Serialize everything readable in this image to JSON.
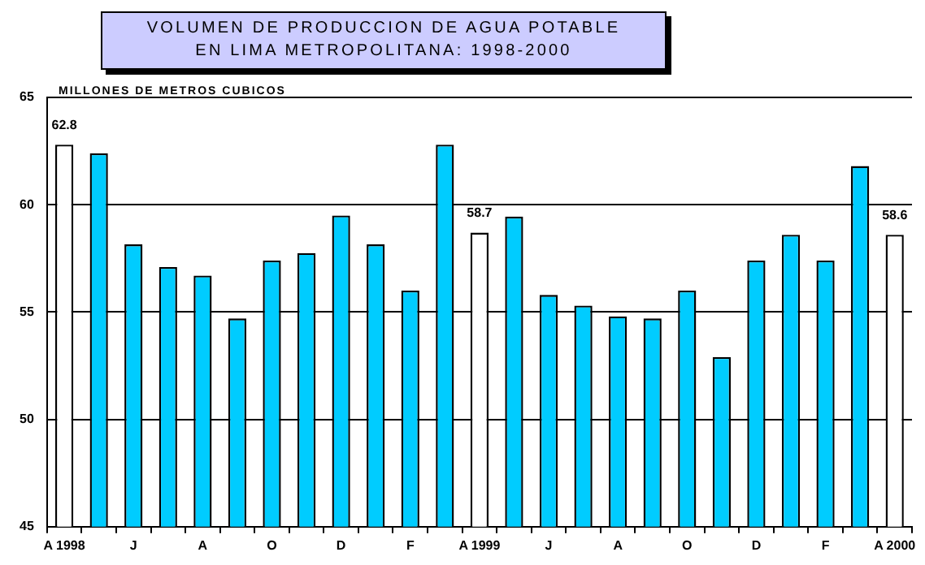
{
  "chart_data": {
    "type": "bar",
    "title": "VOLUMEN DE PRODUCCION DE AGUA POTABLE\nEN LIMA METROPOLITANA: 1998-2000",
    "ylabel": "MILLONES DE METROS CUBICOS",
    "categories": [
      "A 1998",
      null,
      "J",
      null,
      "A",
      null,
      "O",
      null,
      "D",
      null,
      "F",
      null,
      "A 1999",
      null,
      "J",
      null,
      "A",
      null,
      "O",
      null,
      "D",
      null,
      "F",
      null,
      "A 2000"
    ],
    "values": [
      62.8,
      62.4,
      58.15,
      57.1,
      56.7,
      54.7,
      57.4,
      57.75,
      59.5,
      58.15,
      56.0,
      62.8,
      58.7,
      59.45,
      55.8,
      55.3,
      54.8,
      54.7,
      56.0,
      52.9,
      57.4,
      58.6,
      57.4,
      61.8,
      58.6
    ],
    "colors": [
      "#ffffff",
      "#00ccff",
      "#00ccff",
      "#00ccff",
      "#00ccff",
      "#00ccff",
      "#00ccff",
      "#00ccff",
      "#00ccff",
      "#00ccff",
      "#00ccff",
      "#00ccff",
      "#ffffff",
      "#00ccff",
      "#00ccff",
      "#00ccff",
      "#00ccff",
      "#00ccff",
      "#00ccff",
      "#00ccff",
      "#00ccff",
      "#00ccff",
      "#00ccff",
      "#00ccff",
      "#ffffff"
    ],
    "value_labels": [
      "62.8",
      null,
      null,
      null,
      null,
      null,
      null,
      null,
      null,
      null,
      null,
      null,
      "58.7",
      null,
      null,
      null,
      null,
      null,
      null,
      null,
      null,
      null,
      null,
      null,
      "58.6"
    ],
    "ylim": [
      45,
      65
    ],
    "yticks": [
      45,
      50,
      55,
      60,
      65
    ],
    "grid": "y",
    "legend": false
  }
}
